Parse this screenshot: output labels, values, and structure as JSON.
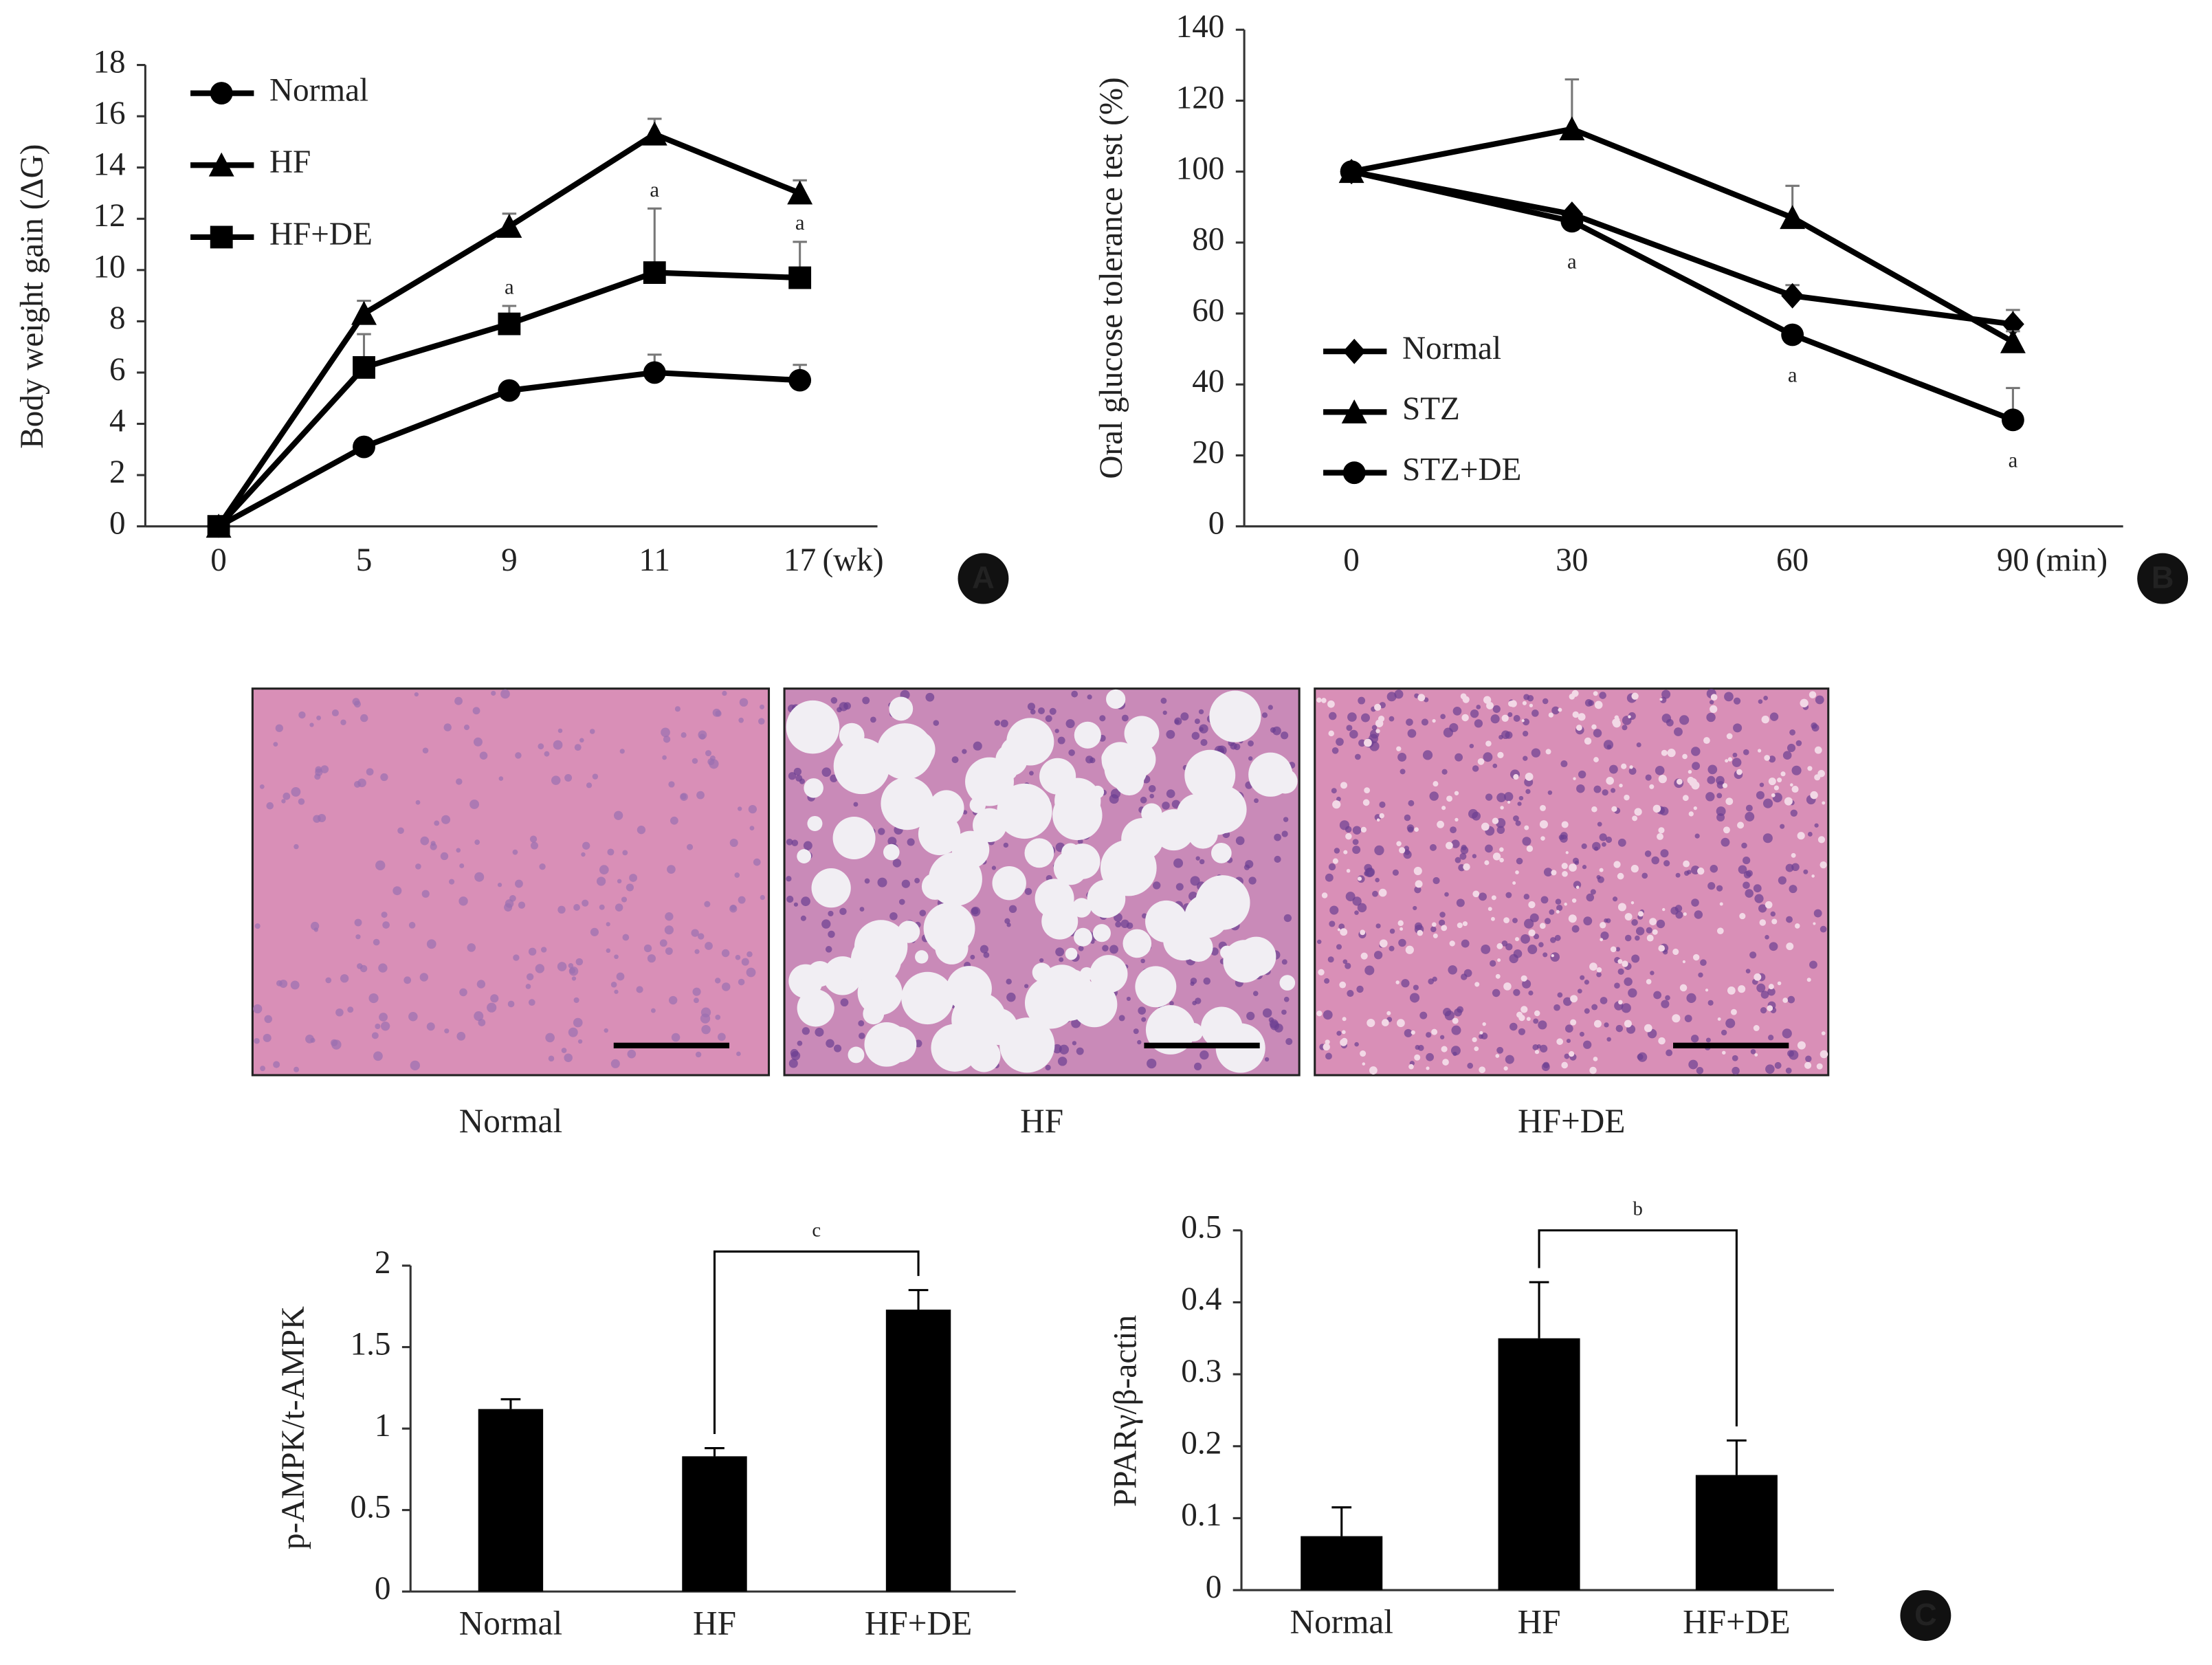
{
  "chart_data": [
    {
      "type": "line",
      "ylabel": "Body weight gain (ΔG)",
      "xlabel": "(wk)",
      "categories": [
        "0",
        "5",
        "9",
        "11",
        "17"
      ],
      "ylim": [
        0,
        18
      ],
      "yticks": [
        0,
        2,
        4,
        6,
        8,
        10,
        12,
        14,
        16,
        18
      ],
      "legend": "upper left",
      "series": [
        {
          "name": "Normal",
          "color": "#000000",
          "marker": "circle",
          "values": [
            0,
            3.1,
            5.3,
            6.0,
            5.7
          ],
          "errors": [
            0,
            0.2,
            0.2,
            0.7,
            0.6
          ]
        },
        {
          "name": "HF",
          "color": "#000000",
          "marker": "triangle",
          "values": [
            0,
            8.3,
            11.7,
            15.3,
            13.0
          ],
          "errors": [
            0,
            0.5,
            0.5,
            0.6,
            0.5
          ]
        },
        {
          "name": "HF+DE",
          "color": "#000000",
          "marker": "square",
          "values": [
            0,
            6.2,
            7.9,
            9.9,
            9.7
          ],
          "errors": [
            0,
            1.3,
            0.7,
            2.5,
            1.4
          ],
          "annotations": [
            null,
            null,
            "a",
            "a",
            "a"
          ]
        }
      ]
    },
    {
      "type": "line",
      "ylabel": "Oral glucose tolerance test (%)",
      "xlabel": "(min)",
      "categories": [
        "0",
        "30",
        "60",
        "90"
      ],
      "ylim": [
        0,
        140
      ],
      "yticks": [
        0,
        20,
        40,
        60,
        80,
        100,
        120,
        140
      ],
      "legend": "lower left",
      "series": [
        {
          "name": "Normal",
          "color": "#000000",
          "marker": "diamond",
          "values": [
            100,
            88,
            65,
            57
          ],
          "errors": [
            0,
            0,
            3,
            4
          ]
        },
        {
          "name": "STZ",
          "color": "#000000",
          "marker": "triangle",
          "values": [
            100,
            112,
            87,
            52
          ],
          "errors": [
            0,
            14,
            9,
            3
          ]
        },
        {
          "name": "STZ+DE",
          "color": "#000000",
          "marker": "circle",
          "values": [
            100,
            86,
            54,
            30
          ],
          "errors": [
            0,
            0,
            2,
            9
          ],
          "annotations": [
            null,
            "a",
            "a",
            "a"
          ]
        }
      ]
    },
    {
      "type": "bar",
      "ylabel": "p-AMPK/t-AMPK",
      "categories": [
        "Normal",
        "HF",
        "HF+DE"
      ],
      "values": [
        1.12,
        0.83,
        1.73
      ],
      "errors": [
        0.06,
        0.05,
        0.12
      ],
      "color": "#000000",
      "ylim": [
        0,
        2
      ],
      "yticks": [
        0,
        0.5,
        1,
        1.5,
        2
      ],
      "bracket": {
        "label": "c",
        "from": "HF",
        "to": "HF+DE"
      }
    },
    {
      "type": "bar",
      "ylabel": "PPARγ/β-actin",
      "categories": [
        "Normal",
        "HF",
        "HF+DE"
      ],
      "values": [
        0.075,
        0.35,
        0.16
      ],
      "errors": [
        0.04,
        0.078,
        0.048
      ],
      "color": "#000000",
      "ylim": [
        0,
        0.5
      ],
      "yticks": [
        0,
        0.1,
        0.2,
        0.3,
        0.4,
        0.5
      ],
      "bracket": {
        "label": "b",
        "from": "HF",
        "to": "HF+DE"
      }
    }
  ],
  "histology": {
    "captions": [
      "Normal",
      "HF",
      "HF+DE"
    ]
  },
  "panels": [
    "A",
    "B",
    "C"
  ]
}
